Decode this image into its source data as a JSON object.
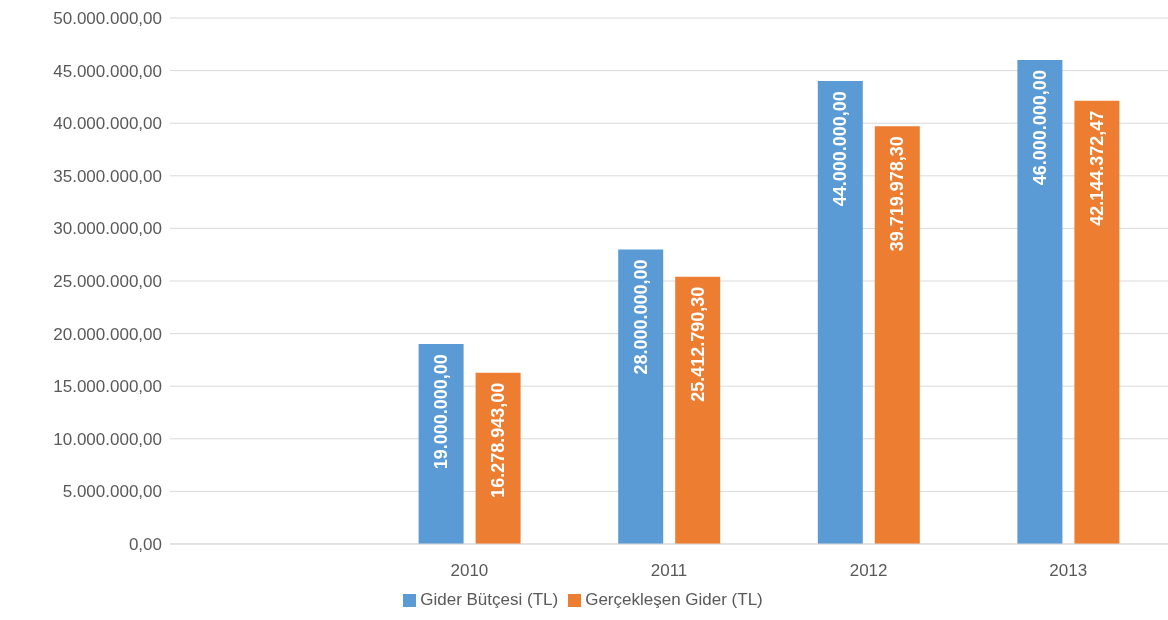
{
  "chart_data": {
    "type": "bar",
    "categories": [
      null,
      "2010",
      "2011",
      "2012",
      "2013"
    ],
    "series": [
      {
        "name": "Gider Bütçesi (TL)",
        "color": "#5b9bd5",
        "values": [
          null,
          19000000,
          28000000,
          44000000,
          46000000
        ],
        "value_labels": [
          null,
          "19.000.000,00",
          "28.000.000,00",
          "44.000.000,00",
          "46.000.000,00"
        ]
      },
      {
        "name": "Gerçekleşen Gider (TL)",
        "color": "#ed7d31",
        "values": [
          null,
          16278943,
          25412790.3,
          39719978.3,
          42144372.47
        ],
        "value_labels": [
          null,
          "16.278.943,00",
          "25.412.790,30",
          "39.719.978,30",
          "42.144.372,47"
        ]
      }
    ],
    "ylim": [
      0,
      50000000
    ],
    "yticks": [
      {
        "value": 0,
        "label": "0,00"
      },
      {
        "value": 5000000,
        "label": "5.000.000,00"
      },
      {
        "value": 10000000,
        "label": "10.000.000,00"
      },
      {
        "value": 15000000,
        "label": "15.000.000,00"
      },
      {
        "value": 20000000,
        "label": "20.000.000,00"
      },
      {
        "value": 25000000,
        "label": "25.000.000,00"
      },
      {
        "value": 30000000,
        "label": "30.000.000,00"
      },
      {
        "value": 35000000,
        "label": "35.000.000,00"
      },
      {
        "value": 40000000,
        "label": "40.000.000,00"
      },
      {
        "value": 45000000,
        "label": "45.000.000,00"
      },
      {
        "value": 50000000,
        "label": "50.000.000,00"
      }
    ],
    "grid": "y",
    "legend": "bottom"
  }
}
